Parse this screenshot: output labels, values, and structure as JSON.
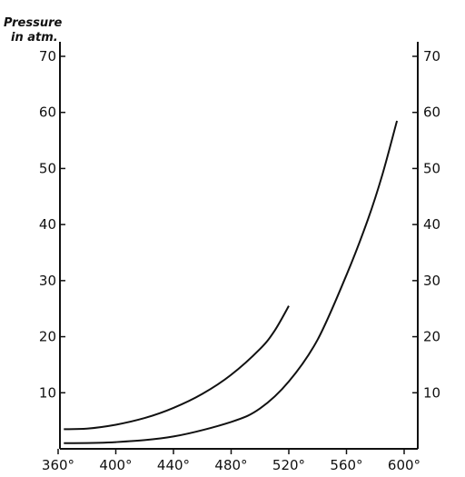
{
  "chart_data": {
    "type": "line",
    "title": "",
    "ylabel_line1": "Pressure",
    "ylabel_line2": "in atm.",
    "xlabel": "",
    "xlim": [
      360,
      620
    ],
    "ylim": [
      0,
      72
    ],
    "x_ticks": [
      "360°",
      "400°",
      "440°",
      "480°",
      "520°",
      "560°",
      "600°"
    ],
    "x_tick_values": [
      360,
      400,
      440,
      480,
      520,
      560,
      600
    ],
    "y_ticks_left": [
      "10",
      "20",
      "30",
      "40",
      "50",
      "60",
      "70"
    ],
    "y_ticks_right": [
      "10",
      "20",
      "30",
      "40",
      "50",
      "60",
      "70"
    ],
    "y_tick_values": [
      10,
      20,
      30,
      40,
      50,
      60,
      70
    ],
    "grid": false,
    "series": [
      {
        "x": [
          364,
          380,
          400,
          420,
          440,
          460,
          480,
          500,
          510,
          520
        ],
        "y": [
          3.5,
          3.6,
          4.3,
          5.5,
          7.3,
          9.8,
          13.2,
          17.8,
          21.0,
          25.5
        ]
      },
      {
        "x": [
          364,
          400,
          440,
          480,
          500,
          520,
          540,
          560,
          575,
          585,
          595
        ],
        "y": [
          1.0,
          1.2,
          2.2,
          4.8,
          7.2,
          12.0,
          19.5,
          31.0,
          41.0,
          49.0,
          58.5
        ]
      }
    ]
  }
}
